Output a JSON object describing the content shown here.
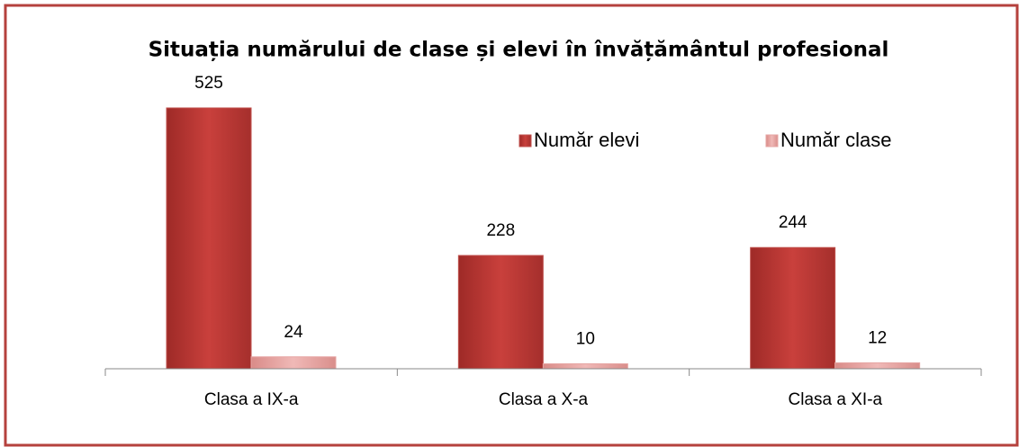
{
  "chart_data": {
    "type": "bar",
    "title": "Situația numărului de clase și elevi în învățământul profesional",
    "categories": [
      "Clasa a IX-a",
      "Clasa a X-a",
      "Clasa a XI-a"
    ],
    "series": [
      {
        "name": "Număr elevi",
        "color": "#c0504d",
        "values": [
          525,
          228,
          244
        ]
      },
      {
        "name": "Număr clase",
        "color": "#e6a5a3",
        "values": [
          24,
          10,
          12
        ]
      }
    ]
  }
}
